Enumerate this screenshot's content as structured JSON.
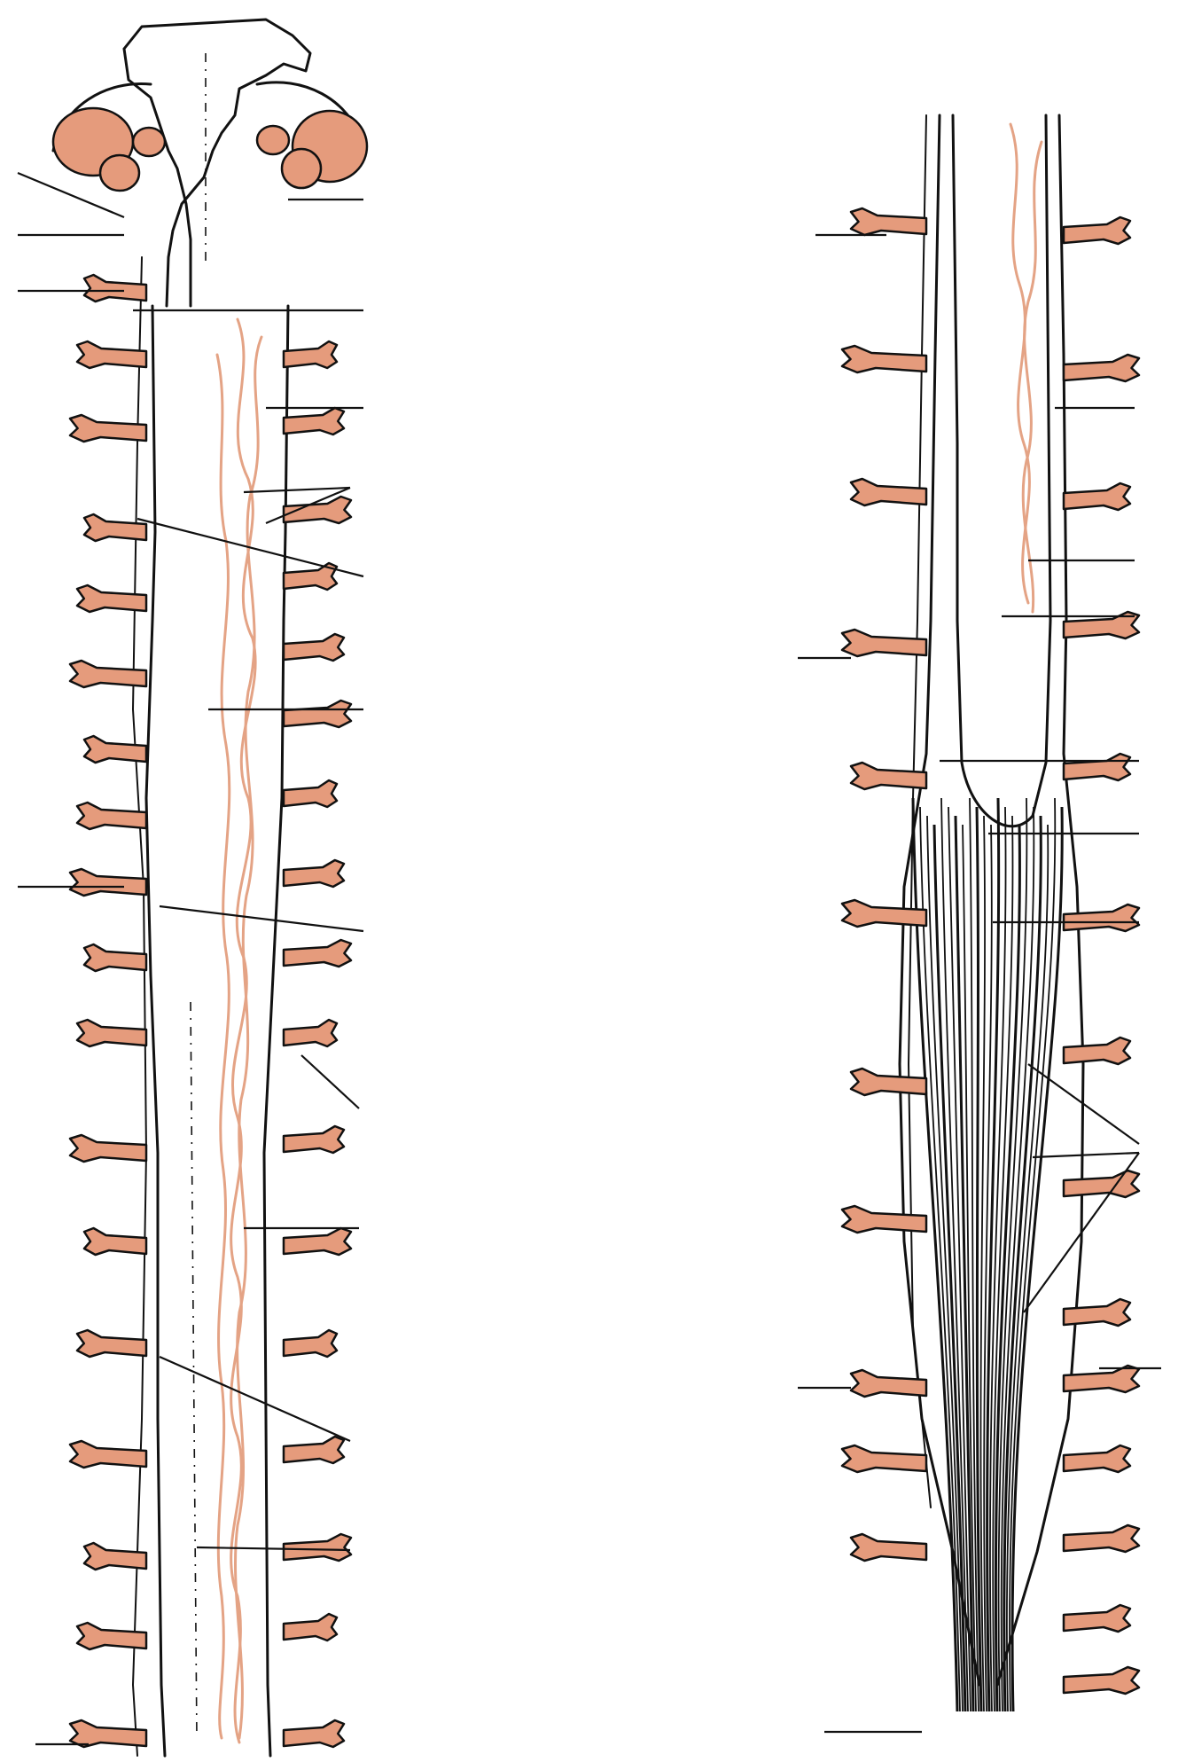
{
  "figure": {
    "subject": "spinal-cord-blank-labeling-diagram",
    "colors": {
      "ink": "#111111",
      "root_fill": "#e59b7c",
      "fiber_stroke": "#e4a385",
      "background": "#ffffff"
    }
  },
  "left_view": {
    "name": "cervical-thoracic-dorsal-view",
    "left_root_count": 18,
    "right_root_count": 17,
    "leader_count": 14
  },
  "right_view": {
    "name": "lumbosacral-cauda-equina-view",
    "left_root_count": 11,
    "right_root_count": 14,
    "leader_count": 12
  }
}
